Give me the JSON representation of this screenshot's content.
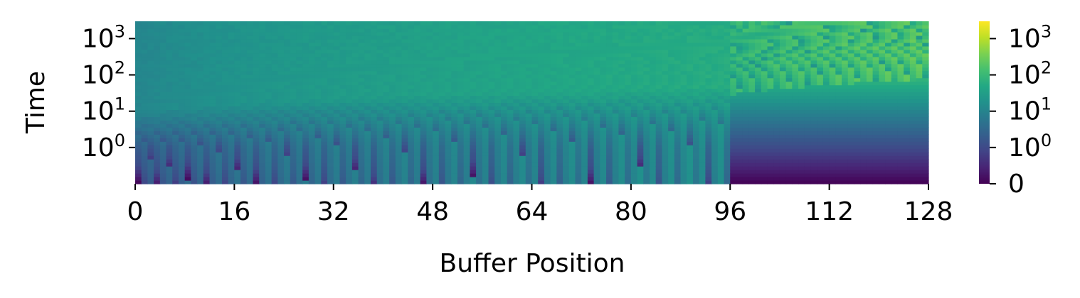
{
  "chart_data": {
    "type": "heatmap",
    "title": "",
    "xlabel": "Buffer Position",
    "ylabel": "Time",
    "x_ticks": [
      "0",
      "16",
      "32",
      "48",
      "64",
      "80",
      "96",
      "112",
      "128"
    ],
    "x_range": [
      0,
      128
    ],
    "y_scale": "symlog",
    "y_ticks": [
      {
        "base": "10",
        "exp": "0",
        "value": 1
      },
      {
        "base": "10",
        "exp": "1",
        "value": 10
      },
      {
        "base": "10",
        "exp": "2",
        "value": 100
      },
      {
        "base": "10",
        "exp": "3",
        "value": 1000
      }
    ],
    "y_range": [
      0,
      3000
    ],
    "colormap": "viridis",
    "colorbar": {
      "scale": "symlog",
      "ticks": [
        {
          "text": "0",
          "value": 0
        },
        {
          "base": "10",
          "exp": "0",
          "value": 1
        },
        {
          "base": "10",
          "exp": "1",
          "value": 10
        },
        {
          "base": "10",
          "exp": "2",
          "value": 100
        },
        {
          "base": "10",
          "exp": "3",
          "value": 1000
        }
      ],
      "range": [
        0,
        3000
      ]
    },
    "grid": false,
    "legend": "none"
  }
}
